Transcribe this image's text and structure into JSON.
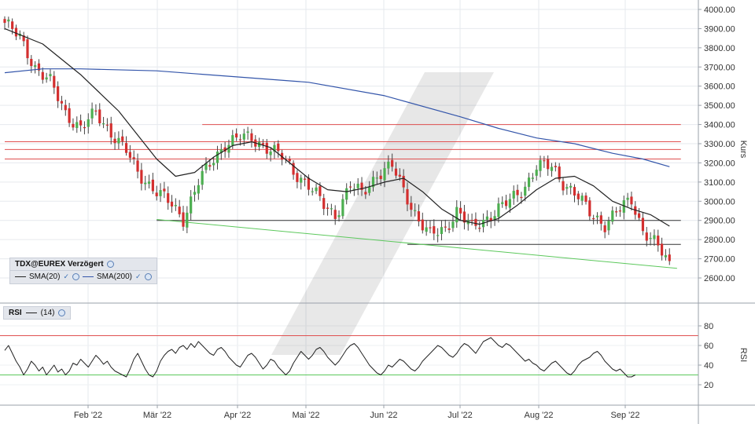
{
  "legend": {
    "title": "TDX@EUREX Verzögert",
    "sma20_label": "SMA(20)",
    "sma200_label": "SMA(200)"
  },
  "rsi_legend": {
    "title": "RSI",
    "period": "(14)"
  },
  "colors": {
    "up": "#4caf50",
    "down": "#d32f2f",
    "sma20": "#222222",
    "sma200": "#3355aa",
    "hline_red": "#e05050",
    "hline_black": "#333333",
    "trend_green": "#5cc85c",
    "rsi_line": "#222222",
    "rsi_upper": "#e05050",
    "rsi_lower": "#5cc85c"
  },
  "chart_data": [
    {
      "type": "candlestick",
      "ylabel": "Kurs",
      "ylim": [
        2500,
        4050
      ],
      "x_tick_labels": [
        "Feb '22",
        "Mär '22",
        "Apr '22",
        "Mai '22",
        "Jun '22",
        "Jul '22",
        "Aug '22",
        "Sep '22"
      ],
      "y_ticks": [
        "2600.00",
        "2700.00",
        "2800.00",
        "2900.00",
        "3000.00",
        "3100.00",
        "3200.00",
        "3300.00",
        "3400.00",
        "3500.00",
        "3600.00",
        "3700.00",
        "3800.00",
        "3900.00",
        "4000.00"
      ],
      "anchors": [
        [
          0,
          3930
        ],
        [
          4,
          3850
        ],
        [
          8,
          3700
        ],
        [
          12,
          3620
        ],
        [
          16,
          3460
        ],
        [
          20,
          3380
        ],
        [
          24,
          3460
        ],
        [
          28,
          3360
        ],
        [
          32,
          3260
        ],
        [
          35,
          3150
        ],
        [
          40,
          3050
        ],
        [
          44,
          2980
        ],
        [
          47,
          2910
        ],
        [
          51,
          3100
        ],
        [
          55,
          3220
        ],
        [
          58,
          3300
        ],
        [
          62,
          3330
        ],
        [
          65,
          3330
        ],
        [
          69,
          3280
        ],
        [
          73,
          3230
        ],
        [
          76,
          3160
        ],
        [
          80,
          3080
        ],
        [
          84,
          2980
        ],
        [
          87,
          2930
        ],
        [
          91,
          3080
        ],
        [
          94,
          3040
        ],
        [
          98,
          3140
        ],
        [
          102,
          3180
        ],
        [
          105,
          3060
        ],
        [
          109,
          2900
        ],
        [
          112,
          2820
        ],
        [
          116,
          2860
        ],
        [
          119,
          2950
        ],
        [
          123,
          2860
        ],
        [
          126,
          2900
        ],
        [
          130,
          2960
        ],
        [
          133,
          3000
        ],
        [
          137,
          3080
        ],
        [
          140,
          3180
        ],
        [
          144,
          3180
        ],
        [
          147,
          3100
        ],
        [
          151,
          3020
        ],
        [
          154,
          2940
        ],
        [
          158,
          2880
        ],
        [
          161,
          2940
        ],
        [
          165,
          3010
        ],
        [
          168,
          2850
        ],
        [
          172,
          2760
        ],
        [
          175,
          2670
        ]
      ],
      "sma20": [
        [
          0,
          3900
        ],
        [
          10,
          3820
        ],
        [
          20,
          3660
        ],
        [
          30,
          3470
        ],
        [
          40,
          3220
        ],
        [
          45,
          3130
        ],
        [
          50,
          3150
        ],
        [
          55,
          3230
        ],
        [
          60,
          3290
        ],
        [
          65,
          3310
        ],
        [
          70,
          3280
        ],
        [
          75,
          3200
        ],
        [
          80,
          3120
        ],
        [
          85,
          3060
        ],
        [
          90,
          3050
        ],
        [
          95,
          3070
        ],
        [
          100,
          3100
        ],
        [
          105,
          3120
        ],
        [
          110,
          3050
        ],
        [
          115,
          2960
        ],
        [
          120,
          2900
        ],
        [
          125,
          2880
        ],
        [
          130,
          2910
        ],
        [
          135,
          2980
        ],
        [
          140,
          3060
        ],
        [
          145,
          3120
        ],
        [
          150,
          3130
        ],
        [
          155,
          3080
        ],
        [
          160,
          3000
        ],
        [
          165,
          2960
        ],
        [
          170,
          2930
        ],
        [
          175,
          2870
        ]
      ],
      "sma200": [
        [
          0,
          3670
        ],
        [
          10,
          3690
        ],
        [
          20,
          3690
        ],
        [
          40,
          3680
        ],
        [
          60,
          3650
        ],
        [
          80,
          3620
        ],
        [
          100,
          3550
        ],
        [
          120,
          3440
        ],
        [
          130,
          3380
        ],
        [
          140,
          3330
        ],
        [
          150,
          3300
        ],
        [
          160,
          3250
        ],
        [
          168,
          3220
        ],
        [
          175,
          3180
        ]
      ],
      "horizontal_levels": [
        {
          "value": 3400,
          "from": 52,
          "to": 178,
          "color": "red"
        },
        {
          "value": 3310,
          "from": 0,
          "to": 178,
          "color": "red"
        },
        {
          "value": 3270,
          "from": 0,
          "to": 178,
          "color": "red"
        },
        {
          "value": 3220,
          "from": 0,
          "to": 178,
          "color": "red"
        },
        {
          "value": 2900,
          "from": 40,
          "to": 178,
          "color": "black"
        },
        {
          "value": 2775,
          "from": 106,
          "to": 178,
          "color": "black"
        }
      ],
      "trend_line": {
        "from": [
          40,
          2905
        ],
        "to": [
          177,
          2650
        ],
        "color": "green"
      }
    },
    {
      "type": "line",
      "title": "RSI",
      "ylim": [
        5,
        95
      ],
      "y_ticks": [
        "20",
        "40",
        "60",
        "80"
      ],
      "upper_level": 70,
      "lower_level": 30,
      "period": 14,
      "values": [
        55,
        60,
        52,
        44,
        38,
        30,
        36,
        44,
        40,
        34,
        38,
        30,
        35,
        40,
        33,
        36,
        30,
        34,
        42,
        40,
        46,
        42,
        38,
        44,
        50,
        46,
        41,
        44,
        38,
        34,
        32,
        30,
        28,
        36,
        46,
        52,
        44,
        36,
        30,
        28,
        34,
        44,
        50,
        54,
        56,
        52,
        58,
        60,
        56,
        62,
        58,
        64,
        60,
        56,
        52,
        50,
        56,
        58,
        54,
        48,
        44,
        40,
        38,
        44,
        50,
        52,
        48,
        42,
        36,
        40,
        46,
        44,
        38,
        34,
        30,
        34,
        42,
        48,
        54,
        50,
        46,
        50,
        56,
        58,
        54,
        48,
        44,
        40,
        44,
        50,
        56,
        60,
        62,
        58,
        52,
        46,
        40,
        36,
        32,
        30,
        34,
        40,
        38,
        42,
        46,
        44,
        40,
        36,
        34,
        38,
        44,
        48,
        52,
        56,
        60,
        58,
        54,
        50,
        48,
        52,
        58,
        62,
        60,
        56,
        52,
        58,
        64,
        66,
        68,
        64,
        60,
        58,
        62,
        60,
        56,
        52,
        48,
        44,
        46,
        42,
        40,
        36,
        34,
        38,
        42,
        44,
        40,
        36,
        32,
        30,
        34,
        40,
        44,
        46,
        48,
        52,
        54,
        50,
        44,
        40,
        36,
        34,
        36,
        32,
        28,
        28,
        30
      ]
    }
  ]
}
